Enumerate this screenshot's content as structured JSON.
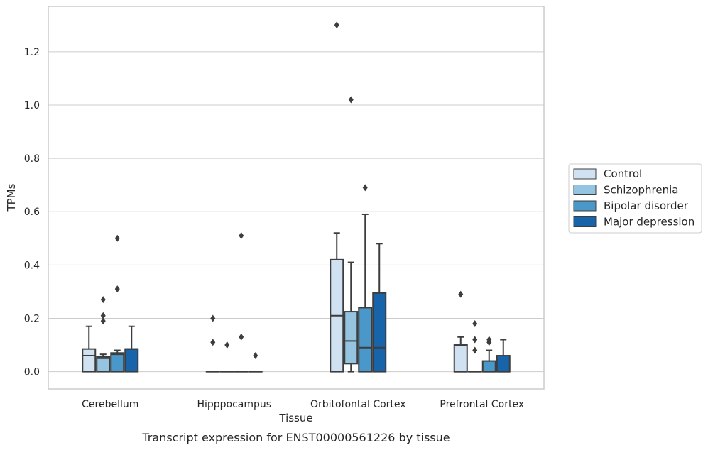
{
  "chart_data": {
    "type": "box",
    "xlabel": "Tissue",
    "ylabel": "TPMs",
    "caption": "Transcript expression for ENST00000561226 by tissue",
    "ylim": [
      -0.065,
      1.37
    ],
    "yticks": [
      "0.0",
      "0.2",
      "0.4",
      "0.6",
      "0.8",
      "1.0",
      "1.2"
    ],
    "grid": "horizontal",
    "legend_position": "right",
    "categories": [
      "Cerebellum",
      "Hipppocampus",
      "Orbitofontal Cortex",
      "Prefrontal Cortex"
    ],
    "series": [
      {
        "name": "Control",
        "color": "#d0e1f2",
        "boxes": [
          {
            "q1": 0.0,
            "median": 0.06,
            "q3": 0.085,
            "whislo": 0.0,
            "whishi": 0.17,
            "fliers": []
          },
          {
            "q1": 0.0,
            "median": 0.0,
            "q3": 0.0,
            "whislo": 0.0,
            "whishi": 0.0,
            "fliers": [
              0.2,
              0.11
            ]
          },
          {
            "q1": 0.0,
            "median": 0.21,
            "q3": 0.42,
            "whislo": 0.0,
            "whishi": 0.52,
            "fliers": [
              1.3
            ]
          },
          {
            "q1": 0.0,
            "median": 0.0,
            "q3": 0.1,
            "whislo": 0.0,
            "whishi": 0.13,
            "fliers": [
              0.29
            ]
          }
        ]
      },
      {
        "name": "Schizophrenia",
        "color": "#94c4df",
        "boxes": [
          {
            "q1": 0.0,
            "median": 0.05,
            "q3": 0.055,
            "whislo": 0.0,
            "whishi": 0.065,
            "fliers": [
              0.27,
              0.21,
              0.19
            ]
          },
          {
            "q1": 0.0,
            "median": 0.0,
            "q3": 0.0,
            "whislo": 0.0,
            "whishi": 0.0,
            "fliers": [
              0.1
            ]
          },
          {
            "q1": 0.03,
            "median": 0.115,
            "q3": 0.225,
            "whislo": 0.0,
            "whishi": 0.41,
            "fliers": [
              1.02
            ]
          },
          {
            "q1": 0.0,
            "median": 0.0,
            "q3": 0.0,
            "whislo": 0.0,
            "whishi": 0.0,
            "fliers": [
              0.18,
              0.12,
              0.08
            ]
          }
        ]
      },
      {
        "name": "Bipolar disorder",
        "color": "#4a98c9",
        "boxes": [
          {
            "q1": 0.0,
            "median": 0.065,
            "q3": 0.07,
            "whislo": 0.0,
            "whishi": 0.08,
            "fliers": [
              0.5,
              0.31
            ]
          },
          {
            "q1": 0.0,
            "median": 0.0,
            "q3": 0.0,
            "whislo": 0.0,
            "whishi": 0.0,
            "fliers": [
              0.51,
              0.13
            ]
          },
          {
            "q1": 0.0,
            "median": 0.09,
            "q3": 0.24,
            "whislo": 0.0,
            "whishi": 0.59,
            "fliers": [
              0.69
            ]
          },
          {
            "q1": 0.0,
            "median": 0.0,
            "q3": 0.04,
            "whislo": 0.0,
            "whishi": 0.08,
            "fliers": [
              0.12,
              0.11
            ]
          }
        ]
      },
      {
        "name": "Major depression",
        "color": "#1764ab",
        "boxes": [
          {
            "q1": 0.0,
            "median": 0.085,
            "q3": 0.085,
            "whislo": 0.0,
            "whishi": 0.17,
            "fliers": []
          },
          {
            "q1": 0.0,
            "median": 0.0,
            "q3": 0.0,
            "whislo": 0.0,
            "whishi": 0.0,
            "fliers": [
              0.06
            ]
          },
          {
            "q1": 0.0,
            "median": 0.09,
            "q3": 0.295,
            "whislo": 0.0,
            "whishi": 0.48,
            "fliers": []
          },
          {
            "q1": 0.0,
            "median": 0.0,
            "q3": 0.06,
            "whislo": 0.0,
            "whishi": 0.12,
            "fliers": []
          }
        ]
      }
    ]
  }
}
